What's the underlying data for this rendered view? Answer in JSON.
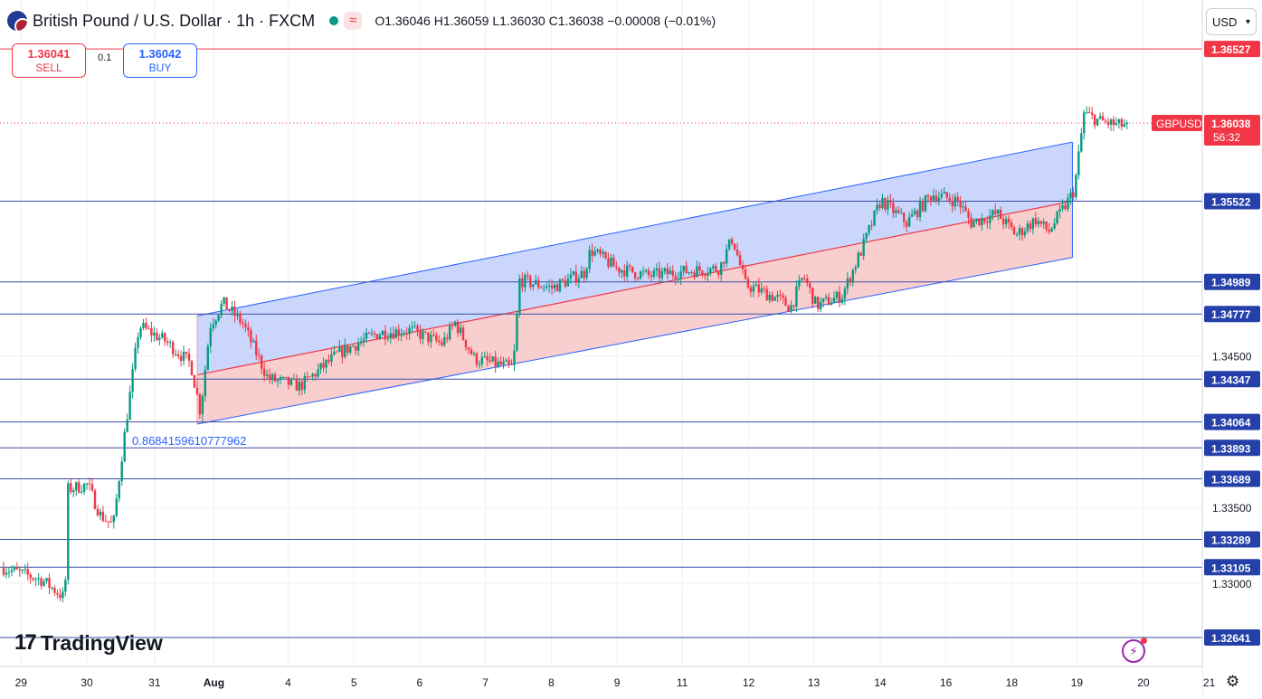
{
  "header": {
    "title": "British Pound / U.S. Dollar · 1h · FXCM",
    "open": "O1.36046",
    "high": "H1.36059",
    "low": "L1.36030",
    "close": "C1.36038",
    "change": "−0.00008 (−0.01%)",
    "wave_symbol": "≈"
  },
  "trade": {
    "sell_price": "1.36041",
    "sell_label": "SELL",
    "spread": "0.1",
    "buy_price": "1.36042",
    "buy_label": "BUY"
  },
  "currency_button": "USD",
  "logo_mark": "17",
  "logo_text": "TradingView",
  "colors": {
    "up": "#089981",
    "down": "#f23645",
    "channel_upper_fill": "#c4d2fb",
    "channel_lower_fill": "#f8c9c9",
    "hline": "#3a4fa3",
    "resistance": "#f23645"
  },
  "chart_data": {
    "type": "candlestick",
    "symbol": "GBPUSD",
    "timeframe": "1h",
    "ylim": [
      1.3245,
      1.3685
    ],
    "y_ticks": [
      "1.34500",
      "1.33500",
      "1.33000"
    ],
    "x_ticks": [
      {
        "label": "29",
        "t": 0.27
      },
      {
        "label": "30",
        "t": 1.29
      },
      {
        "label": "31",
        "t": 2.34
      },
      {
        "label": "Aug",
        "t": 3.26
      },
      {
        "label": "4",
        "t": 4.41
      },
      {
        "label": "5",
        "t": 5.43
      },
      {
        "label": "6",
        "t": 6.45
      },
      {
        "label": "7",
        "t": 7.47
      },
      {
        "label": "8",
        "t": 8.49
      },
      {
        "label": "9",
        "t": 9.51
      },
      {
        "label": "11",
        "t": 10.52
      },
      {
        "label": "12",
        "t": 11.55
      },
      {
        "label": "13",
        "t": 12.56
      },
      {
        "label": "14",
        "t": 13.59
      },
      {
        "label": "16",
        "t": 14.61
      },
      {
        "label": "18",
        "t": 15.63
      },
      {
        "label": "19",
        "t": 16.64
      },
      {
        "label": "20",
        "t": 17.67
      },
      {
        "label": "21",
        "t": 18.69
      }
    ],
    "levels": [
      {
        "value": 1.36527,
        "label": "1.36527",
        "kind": "resistance"
      },
      {
        "value": 1.35522,
        "label": "1.35522",
        "kind": "level"
      },
      {
        "value": 1.34989,
        "label": "1.34989",
        "kind": "level"
      },
      {
        "value": 1.34777,
        "label": "1.34777",
        "kind": "level"
      },
      {
        "value": 1.34347,
        "label": "1.34347",
        "kind": "level"
      },
      {
        "value": 1.34064,
        "label": "1.34064",
        "kind": "level"
      },
      {
        "value": 1.33893,
        "label": "1.33893",
        "kind": "level"
      },
      {
        "value": 1.33689,
        "label": "1.33689",
        "kind": "level"
      },
      {
        "value": 1.33289,
        "label": "1.33289",
        "kind": "level"
      },
      {
        "value": 1.33105,
        "label": "1.33105",
        "kind": "level"
      },
      {
        "value": 1.32641,
        "label": "1.32641",
        "kind": "level"
      }
    ],
    "last_price": {
      "value": 1.36038,
      "label": "1.36038",
      "countdown": "56:32"
    },
    "channel": {
      "start": {
        "t": 3.0,
        "mid": 1.34375,
        "upper": 1.34765,
        "lower": 1.3405
      },
      "end": {
        "t": 16.57,
        "mid": 1.35522,
        "upper": 1.35912,
        "lower": 1.3515
      }
    },
    "channel_ratio_label": "0.8684159610777962",
    "anchors": [
      {
        "t": 0.0,
        "p": 1.331
      },
      {
        "t": 0.6,
        "p": 1.3302
      },
      {
        "t": 0.95,
        "p": 1.329
      },
      {
        "t": 1.0,
        "p": 1.3362
      },
      {
        "t": 1.3,
        "p": 1.3365
      },
      {
        "t": 1.5,
        "p": 1.3345
      },
      {
        "t": 1.7,
        "p": 1.3338
      },
      {
        "t": 1.85,
        "p": 1.339
      },
      {
        "t": 2.1,
        "p": 1.347
      },
      {
        "t": 2.5,
        "p": 1.346
      },
      {
        "t": 2.9,
        "p": 1.3445
      },
      {
        "t": 3.05,
        "p": 1.3413
      },
      {
        "t": 3.2,
        "p": 1.347
      },
      {
        "t": 3.4,
        "p": 1.3485
      },
      {
        "t": 3.7,
        "p": 1.3472
      },
      {
        "t": 4.1,
        "p": 1.3435
      },
      {
        "t": 4.6,
        "p": 1.343
      },
      {
        "t": 5.2,
        "p": 1.3452
      },
      {
        "t": 5.8,
        "p": 1.3465
      },
      {
        "t": 6.3,
        "p": 1.3467
      },
      {
        "t": 6.8,
        "p": 1.3458
      },
      {
        "t": 7.0,
        "p": 1.3472
      },
      {
        "t": 7.3,
        "p": 1.3448
      },
      {
        "t": 7.9,
        "p": 1.3442
      },
      {
        "t": 8.0,
        "p": 1.35
      },
      {
        "t": 8.5,
        "p": 1.3495
      },
      {
        "t": 9.0,
        "p": 1.3505
      },
      {
        "t": 9.1,
        "p": 1.352
      },
      {
        "t": 9.5,
        "p": 1.3508
      },
      {
        "t": 10.0,
        "p": 1.3503
      },
      {
        "t": 10.6,
        "p": 1.3506
      },
      {
        "t": 11.1,
        "p": 1.3508
      },
      {
        "t": 11.3,
        "p": 1.3528
      },
      {
        "t": 11.5,
        "p": 1.3497
      },
      {
        "t": 12.0,
        "p": 1.3488
      },
      {
        "t": 12.2,
        "p": 1.3482
      },
      {
        "t": 12.4,
        "p": 1.3503
      },
      {
        "t": 12.6,
        "p": 1.3483
      },
      {
        "t": 13.0,
        "p": 1.349
      },
      {
        "t": 13.3,
        "p": 1.352
      },
      {
        "t": 13.6,
        "p": 1.3553
      },
      {
        "t": 14.0,
        "p": 1.3538
      },
      {
        "t": 14.4,
        "p": 1.3557
      },
      {
        "t": 14.8,
        "p": 1.3552
      },
      {
        "t": 15.0,
        "p": 1.3538
      },
      {
        "t": 15.4,
        "p": 1.3544
      },
      {
        "t": 15.7,
        "p": 1.353
      },
      {
        "t": 16.0,
        "p": 1.354
      },
      {
        "t": 16.2,
        "p": 1.3532
      },
      {
        "t": 16.5,
        "p": 1.3552
      },
      {
        "t": 16.6,
        "p": 1.356
      },
      {
        "t": 16.75,
        "p": 1.361
      },
      {
        "t": 17.0,
        "p": 1.3605
      },
      {
        "t": 17.3,
        "p": 1.3602
      },
      {
        "t": 17.45,
        "p": 1.36038
      }
    ]
  }
}
